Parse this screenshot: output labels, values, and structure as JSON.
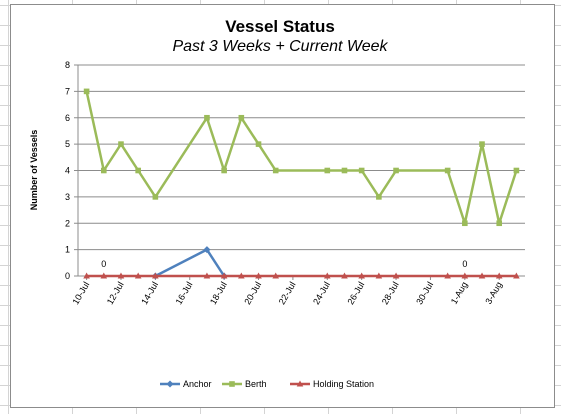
{
  "chart_data": {
    "type": "line",
    "title": "Vessel Status",
    "subtitle": "Past 3 Weeks + Current Week",
    "ylabel": "Number of Vessels",
    "xlabel": "",
    "ylim": [
      0,
      8
    ],
    "yticks": [
      0,
      1,
      2,
      3,
      4,
      5,
      6,
      7,
      8
    ],
    "grid": true,
    "legend_position": "bottom",
    "x_day_range": [
      "10-Jul",
      "4-Aug"
    ],
    "x_tick_labels": [
      "10-Jul",
      "12-Jul",
      "14-Jul",
      "16-Jul",
      "18-Jul",
      "20-Jul",
      "22-Jul",
      "24-Jul",
      "26-Jul",
      "28-Jul",
      "30-Jul",
      "1-Aug",
      "3-Aug"
    ],
    "series": [
      {
        "name": "Anchor",
        "color": "#4f81bd",
        "marker": "diamond",
        "points": [
          {
            "x": "14-Jul",
            "y": 0
          },
          {
            "x": "17-Jul",
            "y": 1
          },
          {
            "x": "18-Jul",
            "y": 0
          }
        ]
      },
      {
        "name": "Berth",
        "color": "#9bbb59",
        "marker": "square",
        "points": [
          {
            "x": "10-Jul",
            "y": 7
          },
          {
            "x": "11-Jul",
            "y": 4
          },
          {
            "x": "12-Jul",
            "y": 5
          },
          {
            "x": "13-Jul",
            "y": 4
          },
          {
            "x": "14-Jul",
            "y": 3
          },
          {
            "x": "17-Jul",
            "y": 6
          },
          {
            "x": "18-Jul",
            "y": 4
          },
          {
            "x": "19-Jul",
            "y": 6
          },
          {
            "x": "20-Jul",
            "y": 5
          },
          {
            "x": "21-Jul",
            "y": 4
          },
          {
            "x": "24-Jul",
            "y": 4
          },
          {
            "x": "25-Jul",
            "y": 4
          },
          {
            "x": "26-Jul",
            "y": 4
          },
          {
            "x": "27-Jul",
            "y": 3
          },
          {
            "x": "28-Jul",
            "y": 4
          },
          {
            "x": "31-Jul",
            "y": 4
          },
          {
            "x": "1-Aug",
            "y": 2
          },
          {
            "x": "2-Aug",
            "y": 5
          },
          {
            "x": "3-Aug",
            "y": 2
          },
          {
            "x": "4-Aug",
            "y": 4
          }
        ]
      },
      {
        "name": "Holding Station",
        "color": "#c0504d",
        "marker": "triangle",
        "points": [
          {
            "x": "10-Jul",
            "y": 0
          },
          {
            "x": "11-Jul",
            "y": 0
          },
          {
            "x": "12-Jul",
            "y": 0
          },
          {
            "x": "13-Jul",
            "y": 0
          },
          {
            "x": "14-Jul",
            "y": 0
          },
          {
            "x": "17-Jul",
            "y": 0
          },
          {
            "x": "18-Jul",
            "y": 0
          },
          {
            "x": "19-Jul",
            "y": 0
          },
          {
            "x": "20-Jul",
            "y": 0
          },
          {
            "x": "21-Jul",
            "y": 0
          },
          {
            "x": "24-Jul",
            "y": 0
          },
          {
            "x": "25-Jul",
            "y": 0
          },
          {
            "x": "26-Jul",
            "y": 0
          },
          {
            "x": "27-Jul",
            "y": 0
          },
          {
            "x": "28-Jul",
            "y": 0
          },
          {
            "x": "31-Jul",
            "y": 0
          },
          {
            "x": "1-Aug",
            "y": 0
          },
          {
            "x": "2-Aug",
            "y": 0
          },
          {
            "x": "3-Aug",
            "y": 0
          },
          {
            "x": "4-Aug",
            "y": 0
          }
        ]
      }
    ],
    "data_labels": [
      {
        "series": "Holding Station",
        "x": "11-Jul",
        "text": "0"
      },
      {
        "series": "Holding Station",
        "x": "1-Aug",
        "text": "0"
      }
    ]
  }
}
